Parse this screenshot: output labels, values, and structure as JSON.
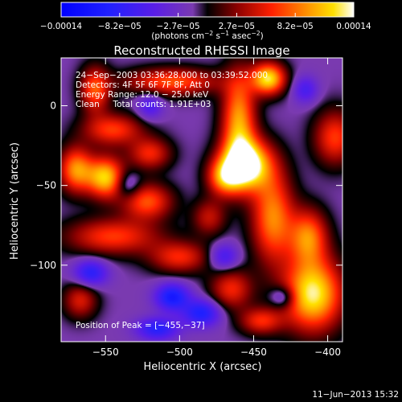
{
  "colorbar": {
    "tick_labels": [
      "−0.00014",
      "−8.2e−05",
      "−2.7e−05",
      "2.7e−05",
      "8.2e−05",
      "0.00014"
    ],
    "unit_parts": [
      "(photons cm",
      "−2",
      " s",
      "−1",
      " asec",
      "−2",
      ")"
    ],
    "range": [
      -0.00014,
      0.00014
    ]
  },
  "chart_data": {
    "type": "heatmap",
    "title": "Reconstructed RHESSI Image",
    "xlabel": "Heliocentric X (arcsec)",
    "ylabel": "Heliocentric Y (arcsec)",
    "xlim": [
      -580,
      -390
    ],
    "ylim": [
      -148,
      30
    ],
    "x_ticks": [
      -550,
      -500,
      -450,
      -400
    ],
    "x_tick_labels": [
      "−550",
      "−500",
      "−450",
      "−400"
    ],
    "y_ticks": [
      -100,
      -50,
      0
    ],
    "y_tick_labels": [
      "−100",
      "−50",
      "0"
    ],
    "grid": false,
    "annotations": [
      "24−Sep−2003 03:36:28.000 to 03:39:52.000",
      "Detectors: 4F 5F 6F 7F 8F, Att 0",
      "Energy Range: 12.0 − 25.0 keV",
      "Clean     Total counts: 1.91E+03"
    ],
    "peak_label": "Position of Peak = [−455,−37]",
    "peak": [
      -455,
      -37
    ],
    "sources": [
      {
        "x": -455,
        "y": -37,
        "sx": 12,
        "sy": 11,
        "a": 1.0
      },
      {
        "x": -460,
        "y": -10,
        "sx": 8,
        "sy": 22,
        "a": 0.7
      },
      {
        "x": -437,
        "y": -70,
        "sx": 10,
        "sy": 20,
        "a": 0.65
      },
      {
        "x": -470,
        "y": -45,
        "sx": 8,
        "sy": 8,
        "a": 0.55
      },
      {
        "x": -440,
        "y": 17,
        "sx": 8,
        "sy": 7,
        "a": 0.85
      },
      {
        "x": -410,
        "y": -118,
        "sx": 14,
        "sy": 16,
        "a": 0.9
      },
      {
        "x": -413,
        "y": -82,
        "sx": 9,
        "sy": 12,
        "a": 0.6
      },
      {
        "x": -550,
        "y": -45,
        "sx": 9,
        "sy": 9,
        "a": 0.8
      },
      {
        "x": -570,
        "y": -40,
        "sx": 8,
        "sy": 10,
        "a": 0.65
      },
      {
        "x": -557,
        "y": 10,
        "sx": 7,
        "sy": 10,
        "a": 0.55
      },
      {
        "x": -545,
        "y": -15,
        "sx": 14,
        "sy": 7,
        "a": 0.5
      },
      {
        "x": -522,
        "y": -60,
        "sx": 12,
        "sy": 8,
        "a": 0.55
      },
      {
        "x": -520,
        "y": -30,
        "sx": 10,
        "sy": 7,
        "a": 0.45
      },
      {
        "x": -505,
        "y": 15,
        "sx": 22,
        "sy": 6,
        "a": 0.55
      },
      {
        "x": -500,
        "y": -95,
        "sx": 14,
        "sy": 7,
        "a": 0.45
      },
      {
        "x": -545,
        "y": -82,
        "sx": 22,
        "sy": 8,
        "a": 0.5
      },
      {
        "x": -465,
        "y": -115,
        "sx": 10,
        "sy": 9,
        "a": 0.45
      },
      {
        "x": -445,
        "y": -135,
        "sx": 10,
        "sy": 6,
        "a": 0.45
      },
      {
        "x": -395,
        "y": -20,
        "sx": 10,
        "sy": 12,
        "a": 0.5
      },
      {
        "x": -567,
        "y": -122,
        "sx": 8,
        "sy": 8,
        "a": 0.4
      },
      {
        "x": -480,
        "y": -70,
        "sx": 8,
        "sy": 8,
        "a": 0.35
      },
      {
        "x": -505,
        "y": -120,
        "sx": 8,
        "sy": 6,
        "a": -0.55
      },
      {
        "x": -485,
        "y": -130,
        "sx": 9,
        "sy": 6,
        "a": -0.5
      },
      {
        "x": -560,
        "y": -105,
        "sx": 8,
        "sy": 6,
        "a": -0.45
      },
      {
        "x": -515,
        "y": -140,
        "sx": 10,
        "sy": 5,
        "a": -0.45
      },
      {
        "x": -470,
        "y": -95,
        "sx": 7,
        "sy": 6,
        "a": -0.35
      },
      {
        "x": -430,
        "y": -120,
        "sx": 6,
        "sy": 5,
        "a": -0.35
      },
      {
        "x": -535,
        "y": -50,
        "sx": 6,
        "sy": 6,
        "a": -0.3
      },
      {
        "x": -415,
        "y": 10,
        "sx": 6,
        "sy": 6,
        "a": -0.3
      },
      {
        "x": -520,
        "y": 0,
        "sx": 6,
        "sy": 6,
        "a": -0.3
      }
    ]
  },
  "footer": {
    "timestamp": "11−Jun−2013 15:32"
  }
}
